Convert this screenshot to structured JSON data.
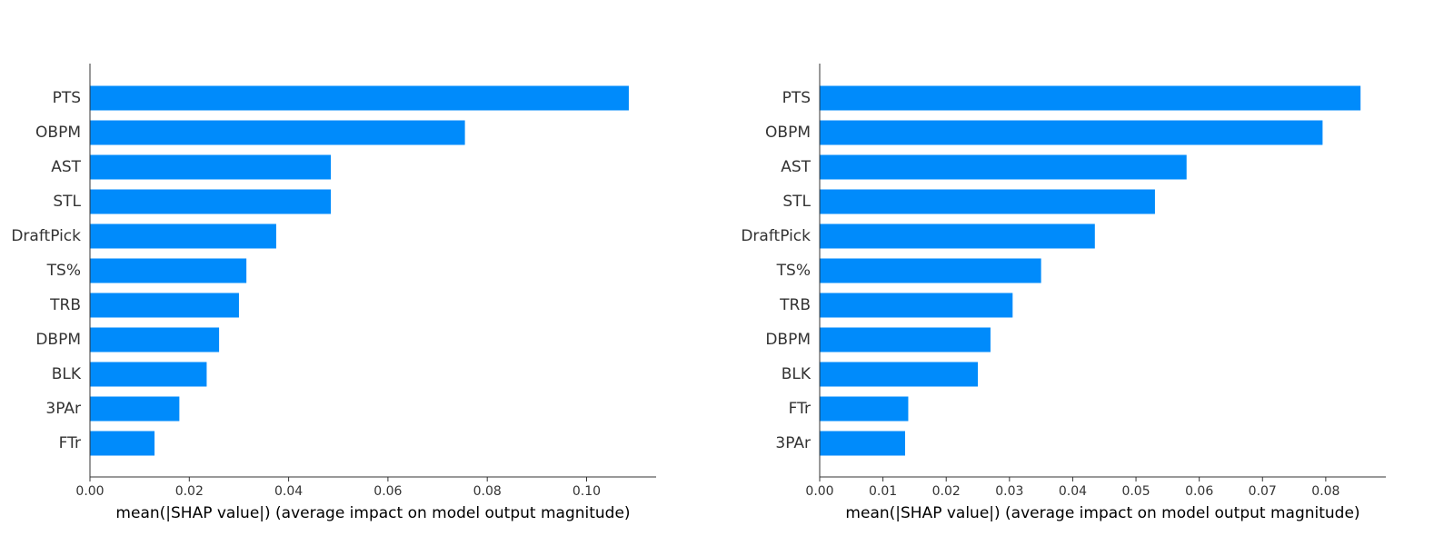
{
  "chart_data": [
    {
      "type": "bar",
      "orientation": "horizontal",
      "categories": [
        "PTS",
        "OBPM",
        "AST",
        "STL",
        "DraftPick",
        "TS%",
        "TRB",
        "DBPM",
        "BLK",
        "3PAr",
        "FTr"
      ],
      "values": [
        0.1085,
        0.0755,
        0.0485,
        0.0485,
        0.0375,
        0.0315,
        0.03,
        0.026,
        0.0235,
        0.018,
        0.013
      ],
      "xlim": [
        0,
        0.114
      ],
      "xticks": [
        0.0,
        0.02,
        0.04,
        0.06,
        0.08,
        0.1
      ],
      "tick_labels": [
        "0.00",
        "0.02",
        "0.04",
        "0.06",
        "0.08",
        "0.10"
      ],
      "xlabel": "mean(|SHAP value|) (average impact on model output magnitude)",
      "ylabel": "",
      "title": "",
      "grid": false,
      "bar_color": "#008bfb"
    },
    {
      "type": "bar",
      "orientation": "horizontal",
      "categories": [
        "PTS",
        "OBPM",
        "AST",
        "STL",
        "DraftPick",
        "TS%",
        "TRB",
        "DBPM",
        "BLK",
        "FTr",
        "3PAr"
      ],
      "values": [
        0.0855,
        0.0795,
        0.058,
        0.053,
        0.0435,
        0.035,
        0.0305,
        0.027,
        0.025,
        0.014,
        0.0135
      ],
      "xlim": [
        0,
        0.0895
      ],
      "xticks": [
        0.0,
        0.01,
        0.02,
        0.03,
        0.04,
        0.05,
        0.06,
        0.07,
        0.08
      ],
      "tick_labels": [
        "0.00",
        "0.01",
        "0.02",
        "0.03",
        "0.04",
        "0.05",
        "0.06",
        "0.07",
        "0.08"
      ],
      "xlabel": "mean(|SHAP value|) (average impact on model output magnitude)",
      "ylabel": "",
      "title": "",
      "grid": false,
      "bar_color": "#008bfb"
    }
  ]
}
